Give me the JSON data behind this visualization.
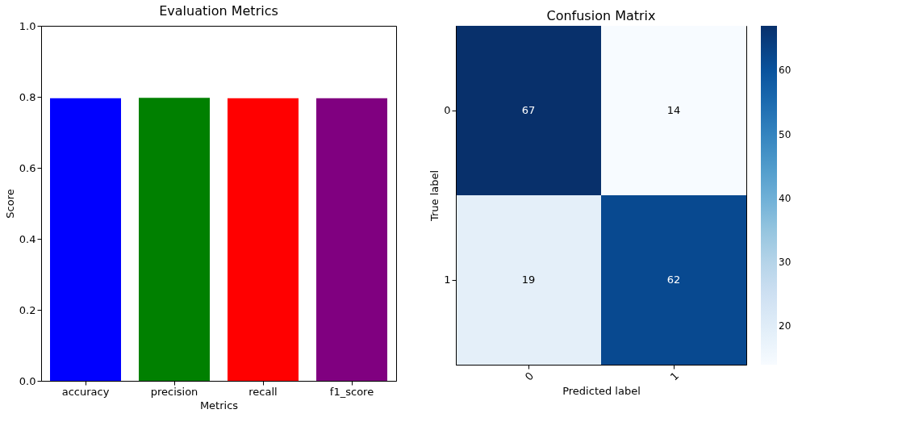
{
  "chart_data": [
    {
      "type": "bar",
      "title": "Evaluation Metrics",
      "xlabel": "Metrics",
      "ylabel": "Score",
      "categories": [
        "accuracy",
        "precision",
        "recall",
        "f1_score"
      ],
      "values": [
        0.796,
        0.797,
        0.796,
        0.796
      ],
      "colors": [
        "#0000ff",
        "#008000",
        "#ff0000",
        "#800080"
      ],
      "ylim": [
        0,
        1
      ],
      "yticks": [
        {
          "value": 0,
          "label": "0.0"
        },
        {
          "value": 0.2,
          "label": "0.2"
        },
        {
          "value": 0.4,
          "label": "0.4"
        },
        {
          "value": 0.6,
          "label": "0.6"
        },
        {
          "value": 0.8,
          "label": "0.8"
        },
        {
          "value": 1,
          "label": "1.0"
        }
      ],
      "grid": false
    },
    {
      "type": "heatmap",
      "title": "Confusion Matrix",
      "xlabel": "Predicted label",
      "ylabel": "True label",
      "categories": [
        "0",
        "1"
      ],
      "y_categories": [
        "0",
        "1"
      ],
      "cells": [
        [
          67,
          14
        ],
        [
          19,
          62
        ]
      ],
      "data_labels": true,
      "clim": [
        14,
        67
      ],
      "cticks": [
        20,
        30,
        40,
        50,
        60
      ]
    }
  ]
}
